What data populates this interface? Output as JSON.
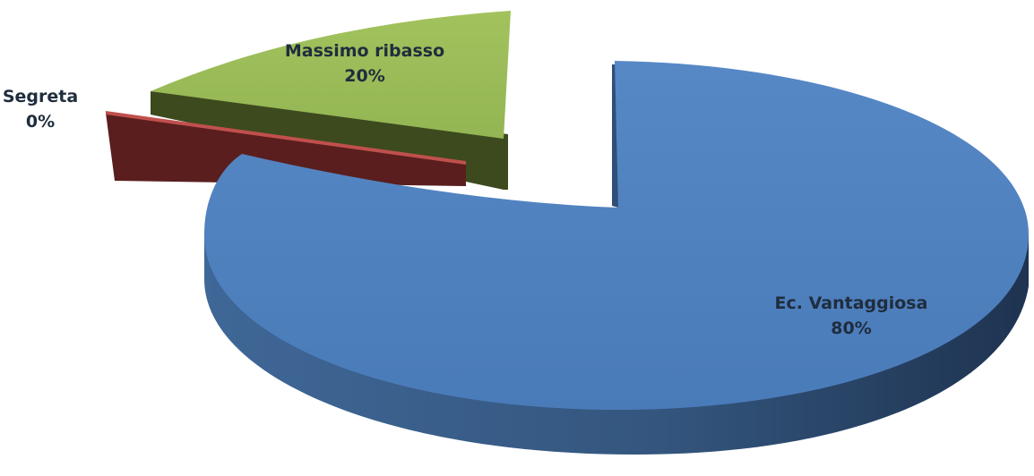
{
  "chart_data": {
    "type": "pie",
    "three_d": true,
    "exploded": true,
    "slices": [
      {
        "label": "Ec. Vantaggiosa",
        "value": 80,
        "display": "80%",
        "color": "#4f81bd"
      },
      {
        "label": "Massimo  ribasso",
        "value": 20,
        "display": "20%",
        "color": "#9bbb59"
      },
      {
        "label": "Segreta",
        "value": 0,
        "display": "0%",
        "color": "#c0504d"
      }
    ],
    "legend": "none",
    "data_labels": "category and percentage"
  }
}
